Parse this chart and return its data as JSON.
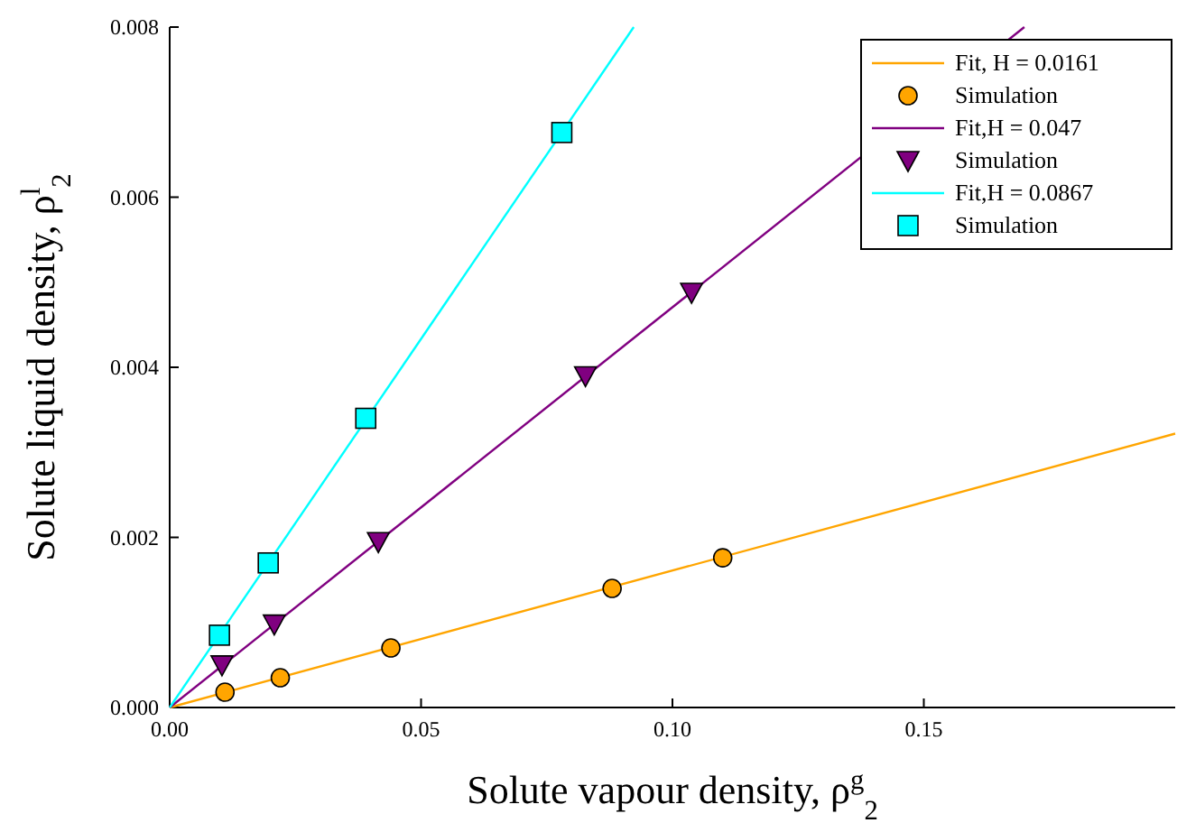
{
  "chart_data": {
    "type": "scatter",
    "xlabel": "Solute vapour density, ρ$^{g}$$_{2}$",
    "ylabel": "Solute liquid density, ρ$^{l}$$_{2}$",
    "xlim": [
      0,
      0.2
    ],
    "ylim": [
      0,
      0.008
    ],
    "xticks": [
      {
        "value": 0,
        "label": "0.00"
      },
      0.05,
      {
        "value": 0.1,
        "label": "0.10"
      },
      0.15
    ],
    "yticks": [
      {
        "value": 0,
        "label": "0.000"
      },
      0.002,
      0.004,
      0.006,
      0.008
    ],
    "grid": false,
    "legend": "top right",
    "series": [
      {
        "name": "Fit, H = 0.0161",
        "type": "line",
        "color": "#ffa500",
        "marker": "none",
        "x": [
          0,
          0.2
        ],
        "values": [
          0,
          0.00322
        ]
      },
      {
        "name": "Simulation",
        "color": "#ffa500",
        "marker": "circle",
        "x": [
          0.011,
          0.022,
          0.044,
          0.088,
          0.11
        ],
        "values": [
          0.00018,
          0.00035,
          0.0007,
          0.0014,
          0.00176
        ]
      },
      {
        "name": "Fit,H = 0.047",
        "type": "line",
        "color": "#800080",
        "marker": "none",
        "x": [
          0,
          0.17
        ],
        "values": [
          0,
          0.008
        ]
      },
      {
        "name": "Simulation",
        "color": "#800080",
        "marker": "triangle",
        "x": [
          0.0104,
          0.0208,
          0.0415,
          0.0827,
          0.1038
        ],
        "values": [
          0.0005,
          0.00098,
          0.00195,
          0.0039,
          0.00488
        ]
      },
      {
        "name": "Fit,H = 0.0867",
        "type": "line",
        "color": "#00ffff",
        "marker": "none",
        "x": [
          0,
          0.0923
        ],
        "values": [
          0,
          0.008
        ]
      },
      {
        "name": "Simulation",
        "color": "#00ffff",
        "marker": "square",
        "x": [
          0.0099,
          0.0196,
          0.039,
          0.078
        ],
        "values": [
          0.00085,
          0.0017,
          0.0034,
          0.00676
        ]
      }
    ]
  }
}
